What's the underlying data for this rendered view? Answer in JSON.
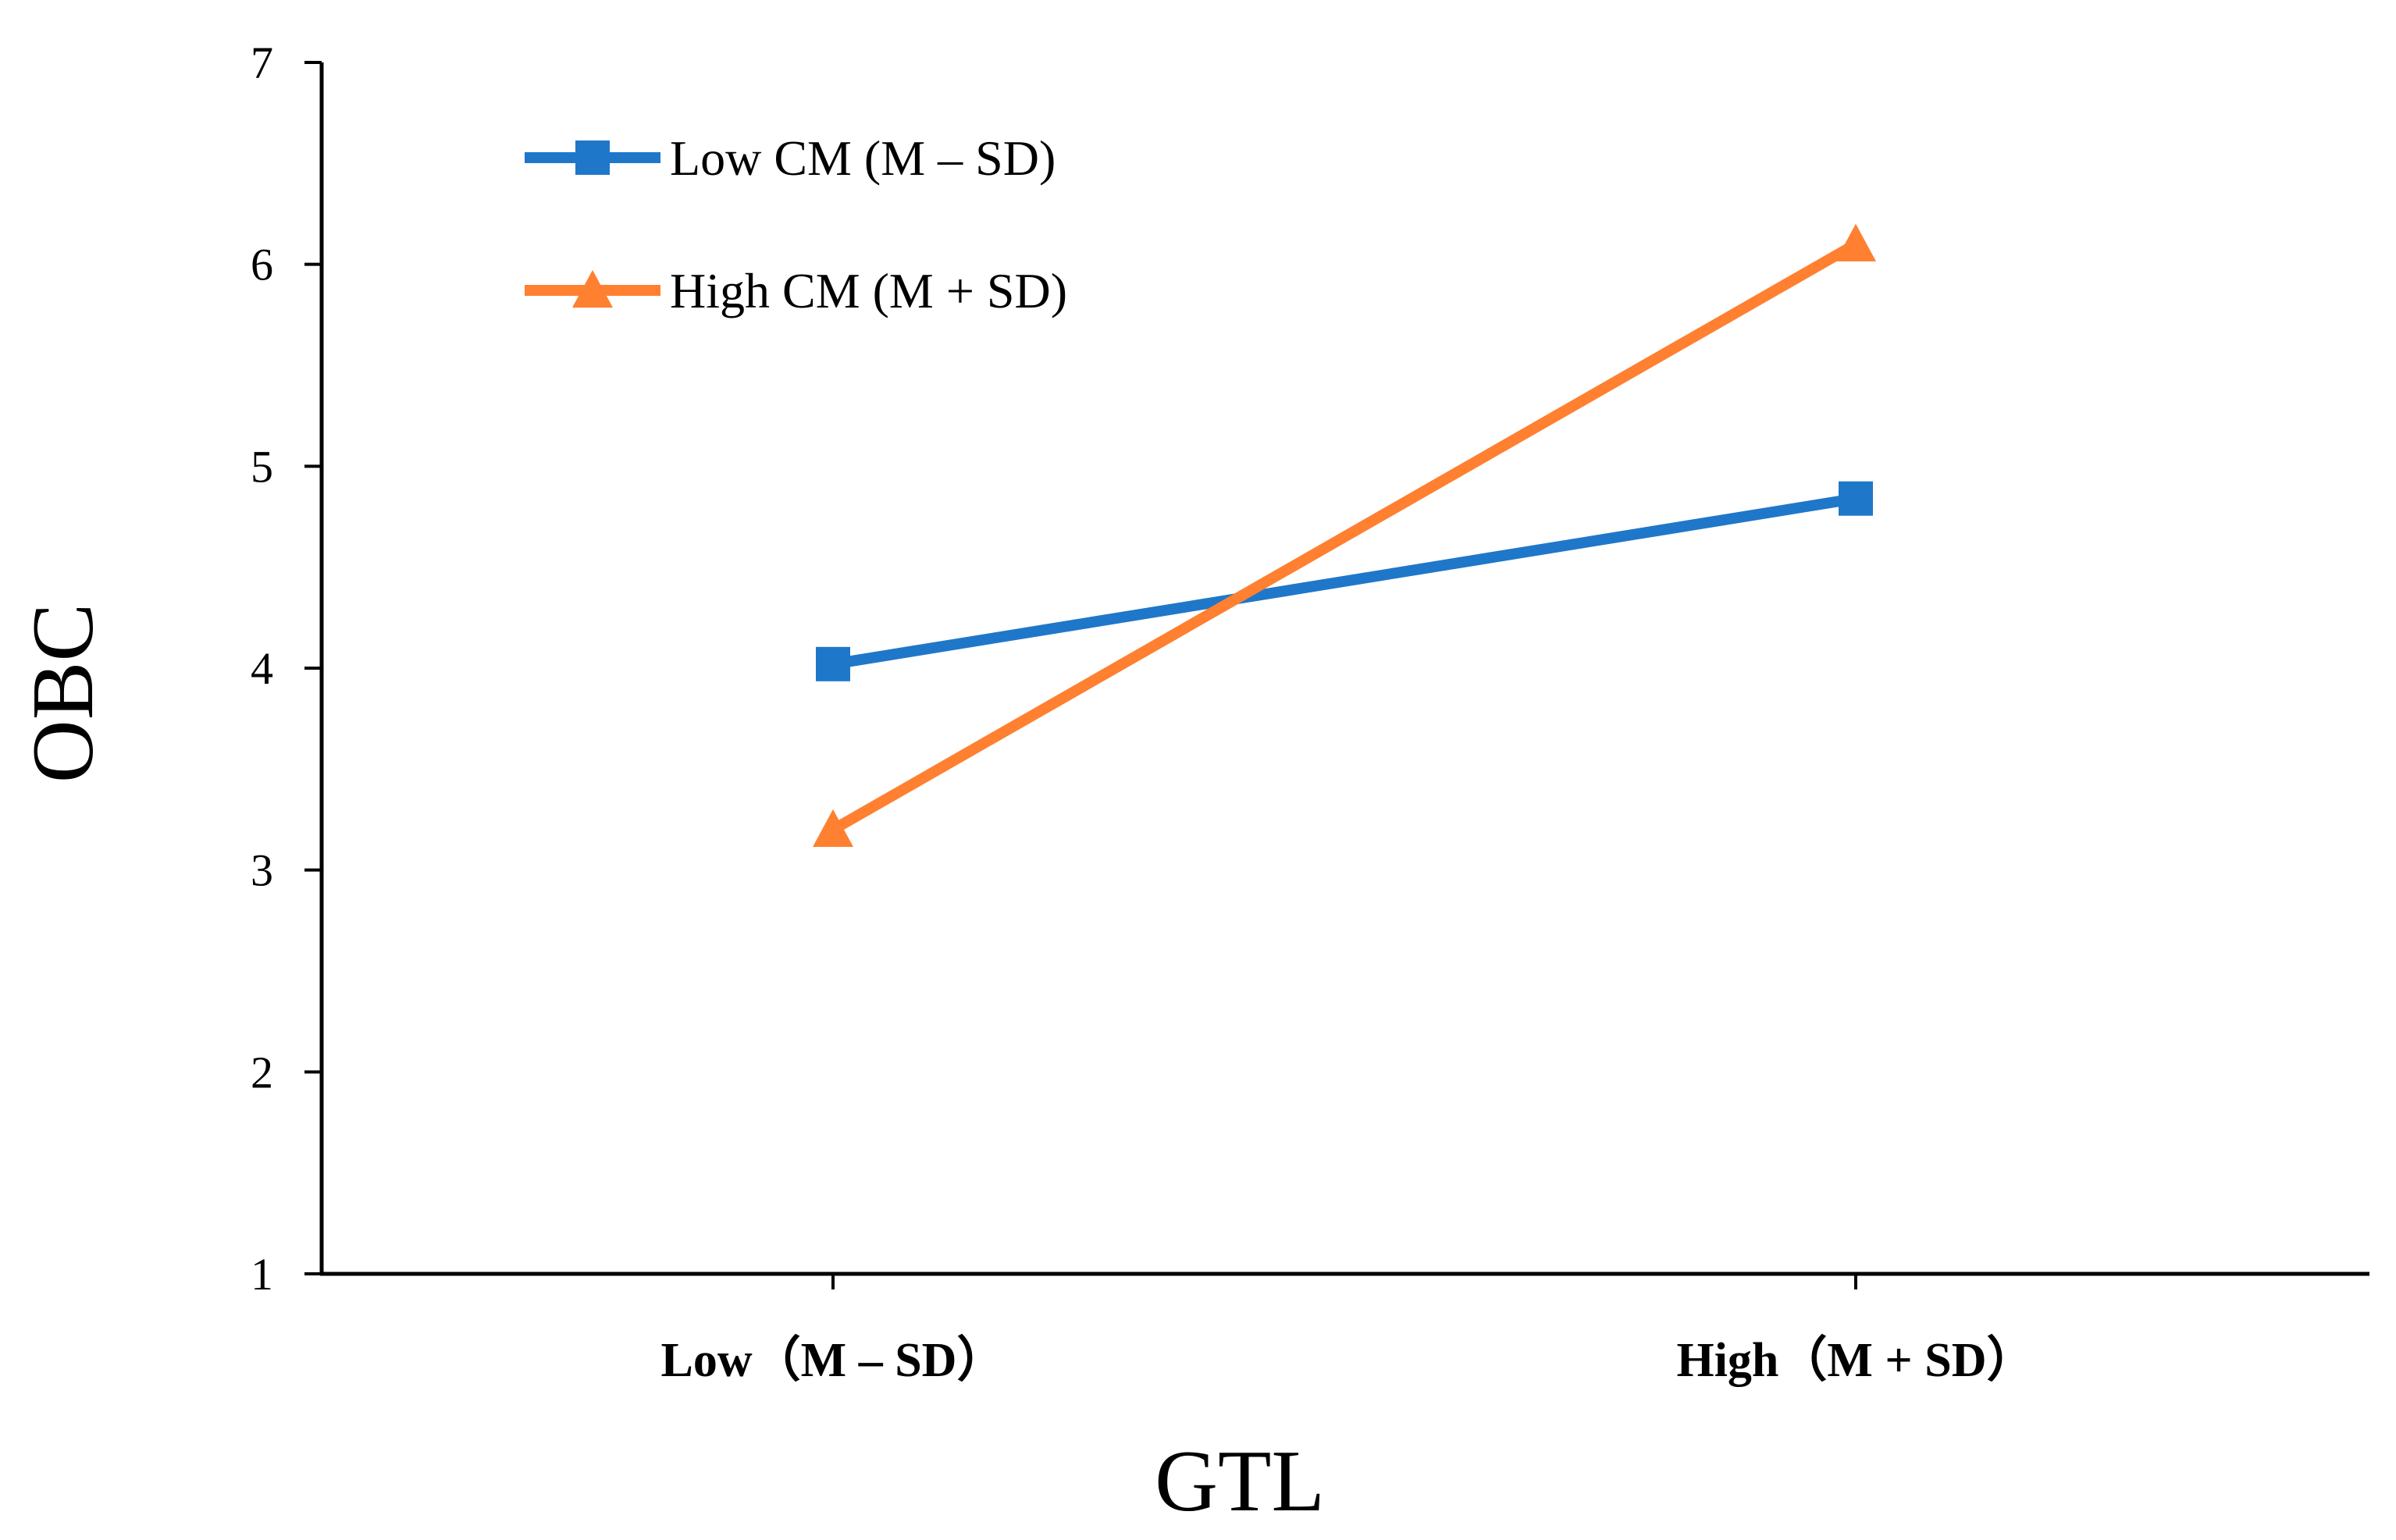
{
  "chart_data": {
    "type": "line",
    "title": "",
    "xlabel": "GTL",
    "ylabel": "OBC",
    "categories": [
      "Low（M – SD）",
      "High（M + SD）"
    ],
    "ylim": [
      1,
      7
    ],
    "yticks": [
      1,
      2,
      3,
      4,
      5,
      6,
      7
    ],
    "grid": false,
    "legend_position": "top-left",
    "series": [
      {
        "name": "Low CM (M – SD)",
        "marker": "square",
        "color": "#1F77C9",
        "values": [
          4.02,
          4.84
        ]
      },
      {
        "name": "High CM (M + SD)",
        "marker": "triangle",
        "color": "#FF8030",
        "values": [
          3.2,
          6.1
        ]
      }
    ]
  }
}
